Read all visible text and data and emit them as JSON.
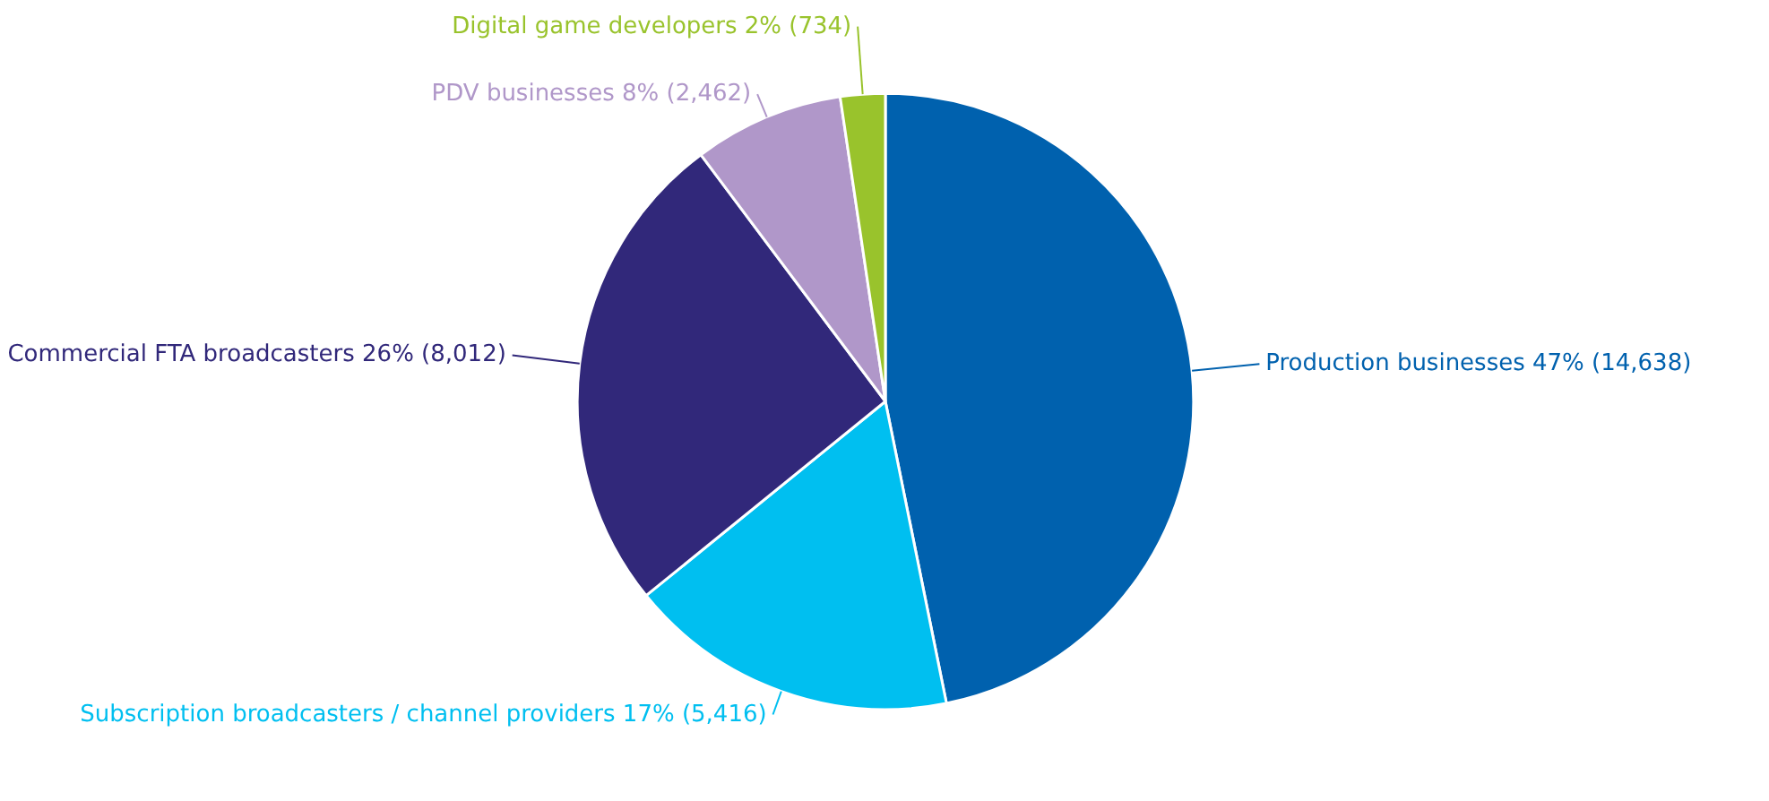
{
  "chart_data": {
    "type": "pie",
    "categories": [
      "Production businesses",
      "Subscription broadcasters / channel providers",
      "Commercial FTA broadcasters",
      "PDV businesses",
      "Digital game developers"
    ],
    "values": [
      14638,
      5416,
      8012,
      2462,
      734
    ],
    "value_labels": [
      "47% (14,638)",
      "17% (5,416)",
      "26% (8,012)",
      "8% (2,462)",
      "2% (734)"
    ],
    "colors": [
      "#0061ae",
      "#00bff0",
      "#31287a",
      "#b097c9",
      "#99c32c"
    ]
  }
}
